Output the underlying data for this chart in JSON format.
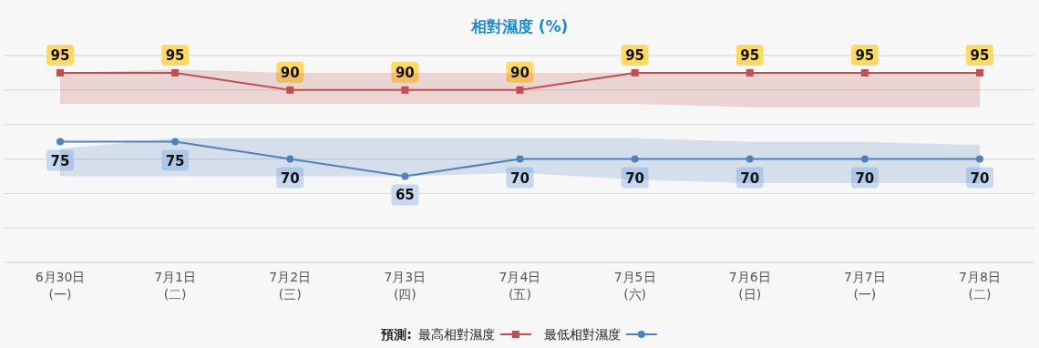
{
  "chart_data": {
    "type": "line",
    "title": "相對濕度 (%)",
    "categories": [
      "6月30日\n(一)",
      "7月1日\n(二)",
      "7月2日\n(三)",
      "7月3日\n(四)",
      "7月4日\n(五)",
      "7月5日\n(六)",
      "7月6日\n(日)",
      "7月7日\n(一)",
      "7月8日\n(二)"
    ],
    "series": [
      {
        "name": "最高相對濕度",
        "color": "#c0504d",
        "marker": "square",
        "values": [
          95,
          95,
          90,
          90,
          90,
          95,
          95,
          95,
          95
        ],
        "lower": [
          86,
          86,
          86,
          86,
          86,
          86,
          85,
          85,
          85
        ],
        "upper": [
          95,
          96,
          95,
          95,
          95,
          95,
          95,
          95,
          95
        ]
      },
      {
        "name": "最低相對濕度",
        "color": "#4f81bd",
        "marker": "circle",
        "values": [
          75,
          75,
          70,
          65,
          70,
          70,
          70,
          70,
          70
        ],
        "lower": [
          65,
          65,
          65,
          65,
          66,
          64,
          63,
          63,
          63
        ],
        "upper": [
          73,
          76,
          76,
          76,
          76,
          76,
          75,
          75,
          74
        ]
      }
    ],
    "legend_title": "預測:",
    "legend": "bottom",
    "ylim": [
      40,
      100
    ],
    "yticks": [
      {
        "value": 40,
        "label": null
      },
      {
        "value": 50,
        "label": null
      },
      {
        "value": 60,
        "label": null
      },
      {
        "value": 70,
        "label": null
      },
      {
        "value": 80,
        "label": null
      },
      {
        "value": 90,
        "label": null
      },
      {
        "value": 100,
        "label": null
      }
    ],
    "grid": "y",
    "tick_labels": "x",
    "data_labels": true,
    "line_style": "solid"
  }
}
